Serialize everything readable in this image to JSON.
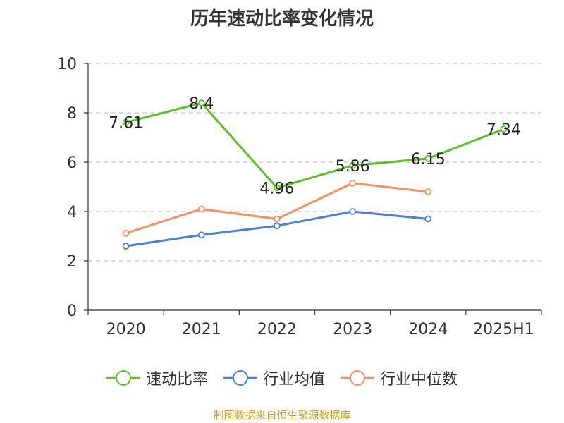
{
  "chart_data": {
    "type": "line",
    "title": "历年速动比率变化情况",
    "categories": [
      "2020",
      "2021",
      "2022",
      "2023",
      "2024",
      "2025H1"
    ],
    "ylim": [
      0,
      10
    ],
    "yticks": [
      0,
      2,
      4,
      6,
      8,
      10
    ],
    "grid": true,
    "legend_position": "bottom",
    "series": [
      {
        "name": "速动比率",
        "color": "#5ec025",
        "values": [
          7.61,
          8.4,
          4.96,
          5.86,
          6.15,
          7.34
        ],
        "labels": [
          "7.61",
          "8.4",
          "4.96",
          "5.86",
          "6.15",
          "7.34"
        ]
      },
      {
        "name": "行业均值",
        "color": "#4b7fd8",
        "values": [
          2.6,
          3.05,
          3.42,
          4.0,
          3.7,
          null
        ]
      },
      {
        "name": "行业中位数",
        "color": "#f39160",
        "values": [
          3.12,
          4.1,
          3.7,
          5.15,
          4.8,
          null
        ]
      }
    ]
  },
  "footer": {
    "source": "制图数据来自恒生聚源数据库"
  }
}
